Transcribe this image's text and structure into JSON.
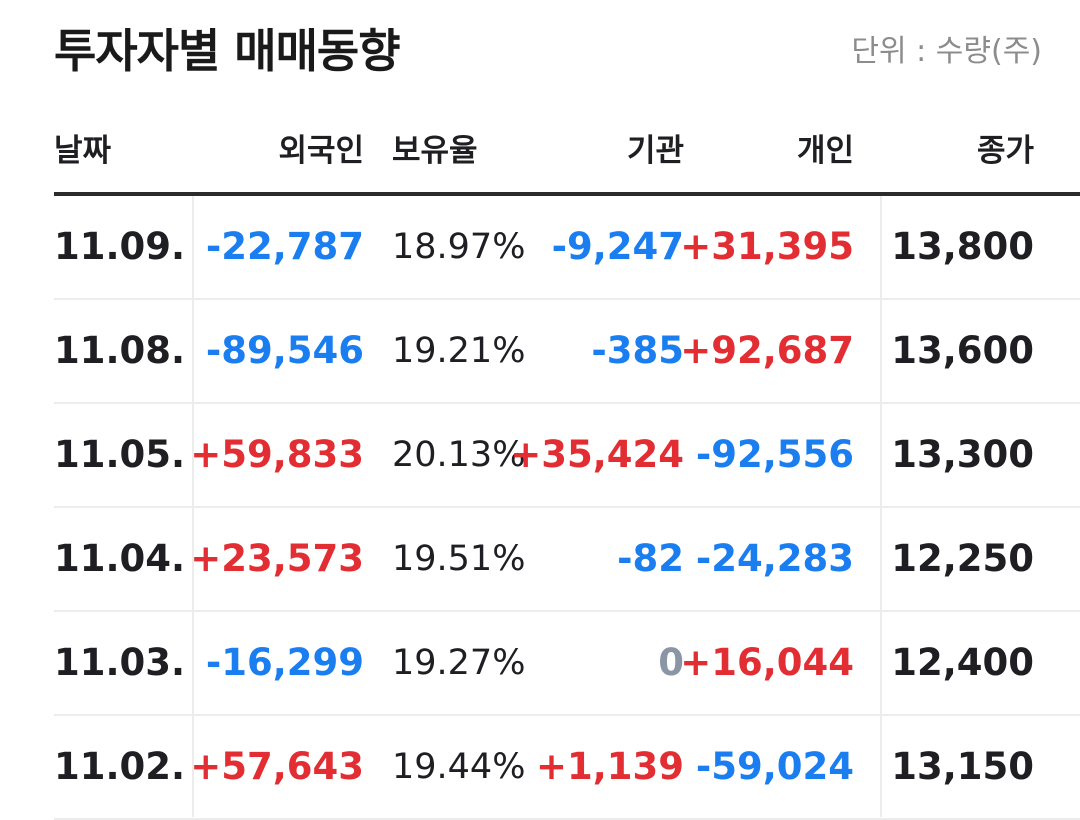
{
  "header": {
    "title": "투자자별 매매동향",
    "unit": "단위 : 수량(주)"
  },
  "columns": {
    "date": "날짜",
    "foreign": "외국인",
    "ratio": "보유율",
    "institution": "기관",
    "individual": "개인",
    "close": "종가"
  },
  "colors": {
    "positive": "#e22d33",
    "negative": "#1a7ef0",
    "zero": "#8a95a5",
    "text": "#1e1e23",
    "muted": "#8c8c8c"
  },
  "rows": [
    {
      "date": "11.09.",
      "foreign": "-22,787",
      "ratio": "18.97%",
      "institution": "-9,247",
      "individual": "+31,395",
      "close": "13,800"
    },
    {
      "date": "11.08.",
      "foreign": "-89,546",
      "ratio": "19.21%",
      "institution": "-385",
      "individual": "+92,687",
      "close": "13,600"
    },
    {
      "date": "11.05.",
      "foreign": "+59,833",
      "ratio": "20.13%",
      "institution": "+35,424",
      "individual": "-92,556",
      "close": "13,300"
    },
    {
      "date": "11.04.",
      "foreign": "+23,573",
      "ratio": "19.51%",
      "institution": "-82",
      "individual": "-24,283",
      "close": "12,250"
    },
    {
      "date": "11.03.",
      "foreign": "-16,299",
      "ratio": "19.27%",
      "institution": "0",
      "individual": "+16,044",
      "close": "12,400"
    },
    {
      "date": "11.02.",
      "foreign": "+57,643",
      "ratio": "19.44%",
      "institution": "+1,139",
      "individual": "-59,024",
      "close": "13,150"
    }
  ]
}
